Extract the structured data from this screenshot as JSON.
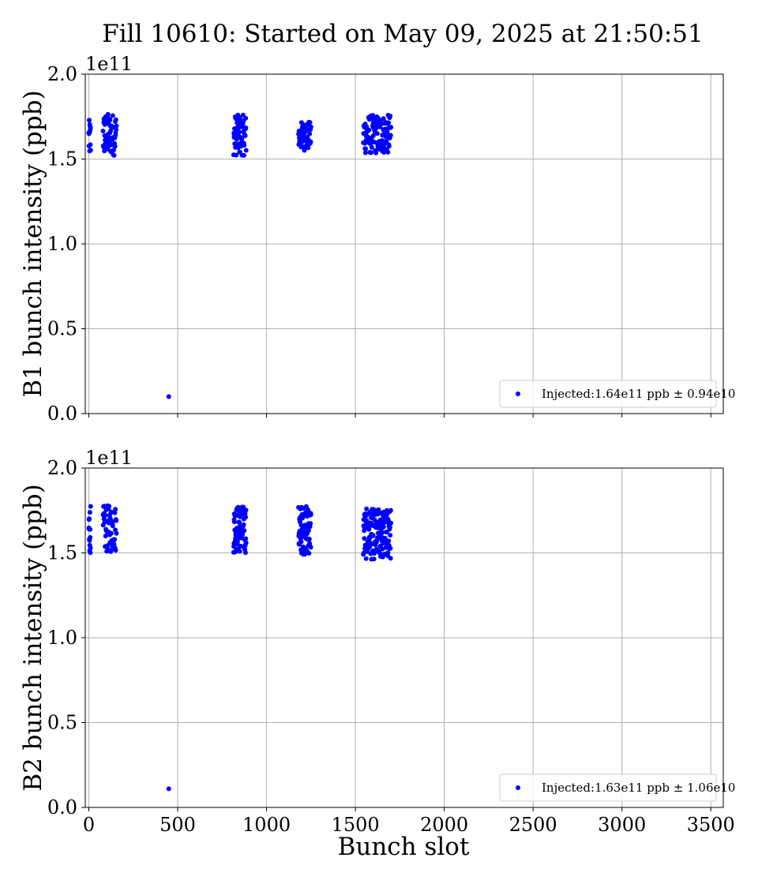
{
  "figure": {
    "title": "Fill 10610: Started on May 09, 2025 at 21:50:51",
    "xlabel": "Bunch slot"
  },
  "chart_data": [
    {
      "type": "scatter",
      "ylabel": "B1 bunch intensity (ppb)",
      "y_multiplier": "1e11",
      "xlim": [
        -20,
        3570
      ],
      "ylim": [
        0.0,
        2.0
      ],
      "xticks": [
        0,
        500,
        1000,
        1500,
        2000,
        2500,
        3000,
        3500
      ],
      "yticks": [
        "0.0",
        "0.5",
        "1.0",
        "1.5",
        "2.0"
      ],
      "grid": true,
      "legend_position": "lower-right",
      "color": "#0000ff",
      "series": [
        {
          "name": "Injected:1.64e11 ppb ± 0.94e10",
          "trains": [
            {
              "x_start": 0,
              "x_end": 10,
              "count": 14,
              "y_min": 1.51,
              "y_max": 1.73
            },
            {
              "x_start": 80,
              "x_end": 155,
              "count": 60,
              "y_min": 1.52,
              "y_max": 1.77
            },
            {
              "x_start": 815,
              "x_end": 885,
              "count": 60,
              "y_min": 1.52,
              "y_max": 1.76
            },
            {
              "x_start": 1180,
              "x_end": 1250,
              "count": 50,
              "y_min": 1.55,
              "y_max": 1.72
            },
            {
              "x_start": 1545,
              "x_end": 1700,
              "count": 120,
              "y_min": 1.53,
              "y_max": 1.76
            }
          ],
          "outliers": [
            {
              "x": 450,
              "y": 0.1
            }
          ]
        }
      ]
    },
    {
      "type": "scatter",
      "ylabel": "B2 bunch intensity (ppb)",
      "y_multiplier": "1e11",
      "xlim": [
        -20,
        3570
      ],
      "ylim": [
        0.0,
        2.0
      ],
      "xticks": [
        0,
        500,
        1000,
        1500,
        2000,
        2500,
        3000,
        3500
      ],
      "yticks": [
        "0.0",
        "0.5",
        "1.0",
        "1.5",
        "2.0"
      ],
      "grid": true,
      "legend_position": "lower-right",
      "color": "#0000ff",
      "series": [
        {
          "name": "Injected:1.63e11 ppb ± 1.06e10",
          "trains": [
            {
              "x_start": 0,
              "x_end": 10,
              "count": 14,
              "y_min": 1.5,
              "y_max": 1.78
            },
            {
              "x_start": 80,
              "x_end": 155,
              "count": 60,
              "y_min": 1.5,
              "y_max": 1.78
            },
            {
              "x_start": 815,
              "x_end": 885,
              "count": 80,
              "y_min": 1.5,
              "y_max": 1.78
            },
            {
              "x_start": 1180,
              "x_end": 1250,
              "count": 80,
              "y_min": 1.49,
              "y_max": 1.78
            },
            {
              "x_start": 1545,
              "x_end": 1700,
              "count": 150,
              "y_min": 1.46,
              "y_max": 1.76
            }
          ],
          "outliers": [
            {
              "x": 450,
              "y": 0.11
            }
          ]
        }
      ]
    }
  ]
}
